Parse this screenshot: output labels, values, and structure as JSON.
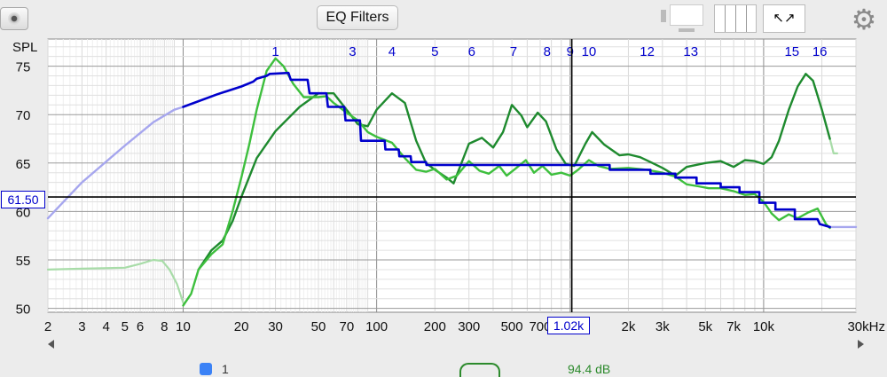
{
  "toolbar": {
    "eq_filters_label": "EQ Filters",
    "icons": [
      "camera-icon",
      "single-pane-icon",
      "columns-icon",
      "expand-arrows-icon",
      "gear-icon"
    ]
  },
  "bottom_strip": {
    "checkbox_label": "1",
    "value_text": "94.4 dB"
  },
  "cursor": {
    "x_label": "1.02k",
    "y_label": "61.50"
  },
  "colors": {
    "target_blue": "#0000cc",
    "target_light": "#a6a6ee",
    "green_bright": "#3dbf3d",
    "green_dark": "#1e8a2e",
    "green_light": "#a8dca8",
    "filter_labels": "#0000cc"
  },
  "chart_data": {
    "type": "line",
    "ylabel": "SPL",
    "xlabel": "",
    "x_scale": "log",
    "xlim": [
      2,
      30000
    ],
    "ylim": [
      49.6,
      77.8
    ],
    "x_ticks": [
      {
        "v": 2,
        "t": "2"
      },
      {
        "v": 3,
        "t": "3"
      },
      {
        "v": 4,
        "t": "4"
      },
      {
        "v": 5,
        "t": "5"
      },
      {
        "v": 6,
        "t": "6"
      },
      {
        "v": 8,
        "t": "8"
      },
      {
        "v": 10,
        "t": "10"
      },
      {
        "v": 20,
        "t": "20"
      },
      {
        "v": 30,
        "t": "30"
      },
      {
        "v": 50,
        "t": "50"
      },
      {
        "v": 70,
        "t": "70"
      },
      {
        "v": 100,
        "t": "100"
      },
      {
        "v": 200,
        "t": "200"
      },
      {
        "v": 300,
        "t": "300"
      },
      {
        "v": 500,
        "t": "500"
      },
      {
        "v": 700,
        "t": "700"
      },
      {
        "v": 2000,
        "t": "2k"
      },
      {
        "v": 3000,
        "t": "3k"
      },
      {
        "v": 5000,
        "t": "5k"
      },
      {
        "v": 7000,
        "t": "7k"
      },
      {
        "v": 10000,
        "t": "10k"
      },
      {
        "v": 30000,
        "t": "30kHz"
      }
    ],
    "y_ticks": [
      50,
      55,
      60,
      65,
      70,
      75
    ],
    "cursor": {
      "x": 1020,
      "y": 61.5
    },
    "filter_markers": [
      {
        "label": "1",
        "f": 30
      },
      {
        "label": "3",
        "f": 75
      },
      {
        "label": "4",
        "f": 120
      },
      {
        "label": "5",
        "f": 200
      },
      {
        "label": "6",
        "f": 310
      },
      {
        "label": "7",
        "f": 510
      },
      {
        "label": "8",
        "f": 760
      },
      {
        "label": "9",
        "f": 1000
      },
      {
        "label": "10",
        "f": 1250
      },
      {
        "label": "12",
        "f": 2500
      },
      {
        "label": "13",
        "f": 4200
      },
      {
        "label": "15",
        "f": 14000
      },
      {
        "label": "16",
        "f": 19500
      }
    ],
    "series": [
      {
        "style": "target-light",
        "points": [
          [
            2,
            59.3
          ],
          [
            3,
            63.0
          ],
          [
            5,
            66.8
          ],
          [
            7,
            69.2
          ],
          [
            9,
            70.5
          ],
          [
            10,
            70.8
          ]
        ]
      },
      {
        "style": "target",
        "points": [
          [
            10,
            70.8
          ],
          [
            15,
            72.1
          ],
          [
            20,
            72.9
          ],
          [
            23,
            73.4
          ],
          [
            24,
            73.7
          ],
          [
            27,
            74.0
          ],
          [
            28,
            74.2
          ],
          [
            35,
            74.3
          ],
          [
            36,
            73.6
          ],
          [
            44,
            73.6
          ],
          [
            45,
            72.2
          ],
          [
            55,
            72.2
          ],
          [
            56,
            70.8
          ],
          [
            68,
            70.8
          ],
          [
            69,
            69.4
          ],
          [
            82,
            69.4
          ],
          [
            83,
            67.3
          ],
          [
            110,
            67.3
          ],
          [
            111,
            66.4
          ],
          [
            130,
            66.4
          ],
          [
            131,
            65.7
          ],
          [
            150,
            65.7
          ],
          [
            151,
            65.1
          ],
          [
            180,
            65.1
          ],
          [
            181,
            64.8
          ],
          [
            1600,
            64.8
          ],
          [
            1601,
            64.3
          ],
          [
            2600,
            64.3
          ],
          [
            2601,
            63.9
          ],
          [
            3500,
            63.9
          ],
          [
            3501,
            63.5
          ],
          [
            4500,
            63.5
          ],
          [
            4501,
            62.9
          ],
          [
            6000,
            62.9
          ],
          [
            6001,
            62.5
          ],
          [
            7500,
            62.5
          ],
          [
            7501,
            62.0
          ],
          [
            9500,
            62.0
          ],
          [
            9501,
            60.9
          ],
          [
            11500,
            60.9
          ],
          [
            11501,
            60.2
          ],
          [
            14500,
            60.2
          ],
          [
            14501,
            59.2
          ],
          [
            19000,
            59.2
          ],
          [
            19500,
            58.7
          ],
          [
            22000,
            58.4
          ]
        ]
      },
      {
        "style": "target-light",
        "points": [
          [
            22000,
            58.4
          ],
          [
            30000,
            58.4
          ]
        ]
      },
      {
        "style": "green-light",
        "points": [
          [
            2,
            54.0
          ],
          [
            3,
            54.1
          ],
          [
            5,
            54.2
          ],
          [
            6,
            54.6
          ],
          [
            7,
            55.0
          ],
          [
            7.8,
            54.9
          ],
          [
            8.5,
            54.0
          ],
          [
            9.3,
            52.5
          ],
          [
            10,
            50.6
          ]
        ]
      },
      {
        "style": "green-bright",
        "points": [
          [
            10,
            50.3
          ],
          [
            11,
            51.5
          ],
          [
            12,
            54.0
          ],
          [
            14,
            55.6
          ],
          [
            16,
            56.6
          ],
          [
            18,
            60.0
          ],
          [
            20,
            63.5
          ],
          [
            22,
            67.0
          ],
          [
            24,
            70.5
          ],
          [
            27,
            74.5
          ],
          [
            30,
            75.8
          ],
          [
            33,
            75.0
          ],
          [
            37,
            73.2
          ],
          [
            42,
            71.8
          ],
          [
            50,
            71.8
          ],
          [
            55,
            71.9
          ],
          [
            60,
            71.2
          ],
          [
            70,
            70.2
          ],
          [
            80,
            69.4
          ],
          [
            90,
            68.2
          ],
          [
            100,
            67.7
          ],
          [
            120,
            67.1
          ],
          [
            140,
            65.5
          ],
          [
            160,
            64.3
          ],
          [
            180,
            64.1
          ],
          [
            200,
            64.4
          ],
          [
            230,
            63.3
          ],
          [
            260,
            63.7
          ],
          [
            300,
            65.2
          ],
          [
            340,
            64.2
          ],
          [
            380,
            63.9
          ],
          [
            430,
            64.7
          ],
          [
            470,
            63.7
          ],
          [
            520,
            64.4
          ],
          [
            590,
            65.3
          ],
          [
            650,
            64.0
          ],
          [
            720,
            64.7
          ],
          [
            800,
            63.8
          ],
          [
            900,
            64.0
          ],
          [
            1000,
            63.7
          ],
          [
            1100,
            64.3
          ],
          [
            1250,
            65.3
          ],
          [
            1400,
            64.7
          ],
          [
            1600,
            64.4
          ],
          [
            2000,
            64.5
          ],
          [
            2500,
            64.3
          ],
          [
            3000,
            64.0
          ],
          [
            3500,
            63.6
          ],
          [
            4000,
            62.8
          ],
          [
            4600,
            62.6
          ],
          [
            5200,
            62.4
          ],
          [
            6000,
            62.4
          ],
          [
            7000,
            62.1
          ],
          [
            8000,
            61.7
          ],
          [
            9000,
            61.8
          ],
          [
            10000,
            61.0
          ],
          [
            11000,
            59.8
          ],
          [
            12000,
            59.1
          ],
          [
            13500,
            59.7
          ],
          [
            15000,
            59.3
          ],
          [
            17000,
            59.9
          ],
          [
            19000,
            60.3
          ],
          [
            21000,
            58.7
          ],
          [
            22000,
            58.3
          ]
        ]
      },
      {
        "style": "green-dark",
        "points": [
          [
            12,
            54.0
          ],
          [
            14,
            56.0
          ],
          [
            16,
            57.0
          ],
          [
            18,
            59.0
          ],
          [
            20,
            61.5
          ],
          [
            24,
            65.5
          ],
          [
            30,
            68.3
          ],
          [
            40,
            70.8
          ],
          [
            50,
            72.2
          ],
          [
            60,
            72.2
          ],
          [
            70,
            70.5
          ],
          [
            80,
            69.0
          ],
          [
            90,
            68.8
          ],
          [
            100,
            70.5
          ],
          [
            120,
            72.2
          ],
          [
            140,
            71.2
          ],
          [
            160,
            67.3
          ],
          [
            180,
            65.0
          ],
          [
            200,
            64.3
          ],
          [
            230,
            63.5
          ],
          [
            250,
            62.9
          ],
          [
            300,
            67.0
          ],
          [
            350,
            67.6
          ],
          [
            400,
            66.6
          ],
          [
            450,
            68.2
          ],
          [
            500,
            71.0
          ],
          [
            560,
            69.9
          ],
          [
            600,
            68.7
          ],
          [
            680,
            70.2
          ],
          [
            750,
            69.3
          ],
          [
            850,
            66.4
          ],
          [
            950,
            64.9
          ],
          [
            1050,
            64.7
          ],
          [
            1200,
            67.0
          ],
          [
            1300,
            68.2
          ],
          [
            1500,
            66.9
          ],
          [
            1800,
            65.8
          ],
          [
            2000,
            65.9
          ],
          [
            2300,
            65.6
          ],
          [
            2600,
            65.1
          ],
          [
            3000,
            64.5
          ],
          [
            3500,
            63.7
          ],
          [
            4000,
            64.6
          ],
          [
            5000,
            65.0
          ],
          [
            6000,
            65.2
          ],
          [
            7000,
            64.6
          ],
          [
            8000,
            65.3
          ],
          [
            9000,
            65.2
          ],
          [
            10000,
            64.9
          ],
          [
            11000,
            65.6
          ],
          [
            12000,
            67.3
          ],
          [
            13500,
            70.5
          ],
          [
            15000,
            72.9
          ],
          [
            16500,
            74.2
          ],
          [
            18000,
            73.5
          ],
          [
            20000,
            70.5
          ],
          [
            22000,
            67.5
          ]
        ]
      },
      {
        "style": "green-light",
        "points": [
          [
            22000,
            67.5
          ],
          [
            23000,
            66.0
          ],
          [
            24000,
            66.0
          ]
        ]
      }
    ]
  }
}
